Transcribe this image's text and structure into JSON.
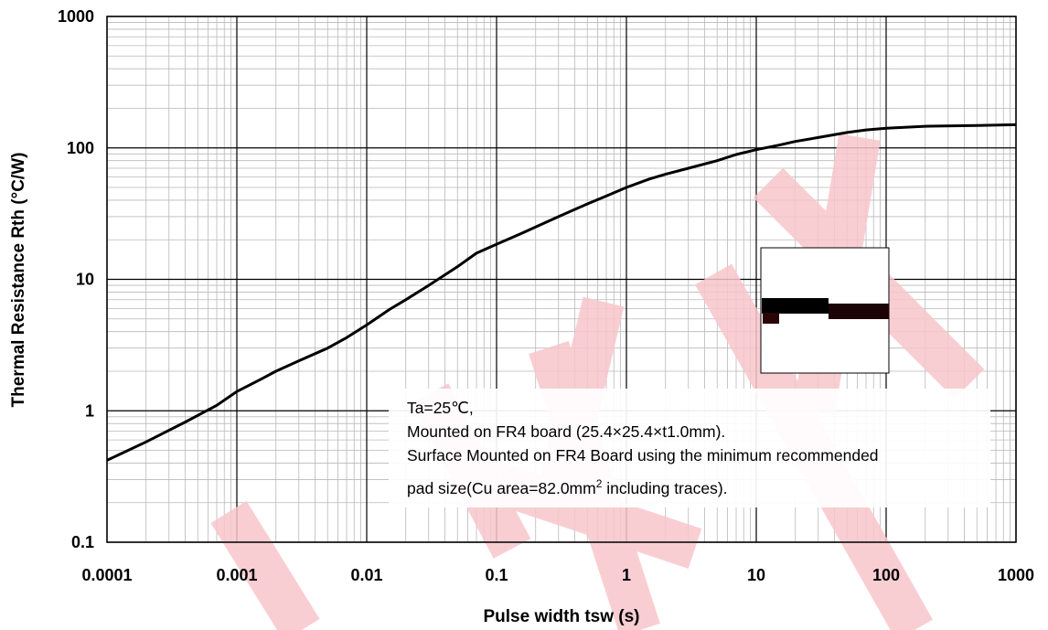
{
  "chart_data": {
    "type": "line",
    "xlabel": "Pulse width tsw (s)",
    "ylabel": "Thermal Resistance Rth (°C/W)",
    "x_scale": "log",
    "y_scale": "log",
    "xlim": [
      0.0001,
      1000
    ],
    "ylim": [
      0.1,
      1000
    ],
    "x_ticks": [
      "0.0001",
      "0.001",
      "0.01",
      "0.1",
      "1",
      "10",
      "100",
      "1000"
    ],
    "y_ticks": [
      "0.1",
      "1",
      "10",
      "100",
      "1000"
    ],
    "grid": true,
    "series": [
      {
        "x": [
          0.0001,
          0.0002,
          0.0004,
          0.0007,
          0.001,
          0.0015,
          0.002,
          0.003,
          0.005,
          0.007,
          0.01,
          0.015,
          0.02,
          0.03,
          0.05,
          0.07,
          0.1,
          0.15,
          0.2,
          0.3,
          0.5,
          0.7,
          1,
          1.5,
          2,
          3,
          5,
          7,
          10,
          15,
          20,
          30,
          50,
          70,
          100,
          200,
          500,
          1000
        ],
        "y": [
          0.42,
          0.58,
          0.82,
          1.1,
          1.4,
          1.72,
          2.0,
          2.4,
          3.0,
          3.6,
          4.5,
          5.9,
          7.0,
          9.0,
          12.5,
          15.8,
          18.5,
          22,
          25,
          30,
          37.5,
          43,
          50,
          58,
          63,
          70,
          80,
          89,
          97,
          105,
          112,
          120,
          131,
          137,
          141,
          146,
          148,
          150
        ],
        "color": "#000000"
      }
    ],
    "annotation": {
      "lines": [
        "Ta=25℃,",
        "Mounted on FR4 board  (25.4×25.4×t1.0mm).",
        "Surface Mounted on FR4 Board using the minimum recommended",
        "pad size(Cu area=82.0mm"
      ],
      "superscript": "2",
      "after_superscript": " including traces)."
    }
  },
  "watermark_color": "#f5b8bd"
}
